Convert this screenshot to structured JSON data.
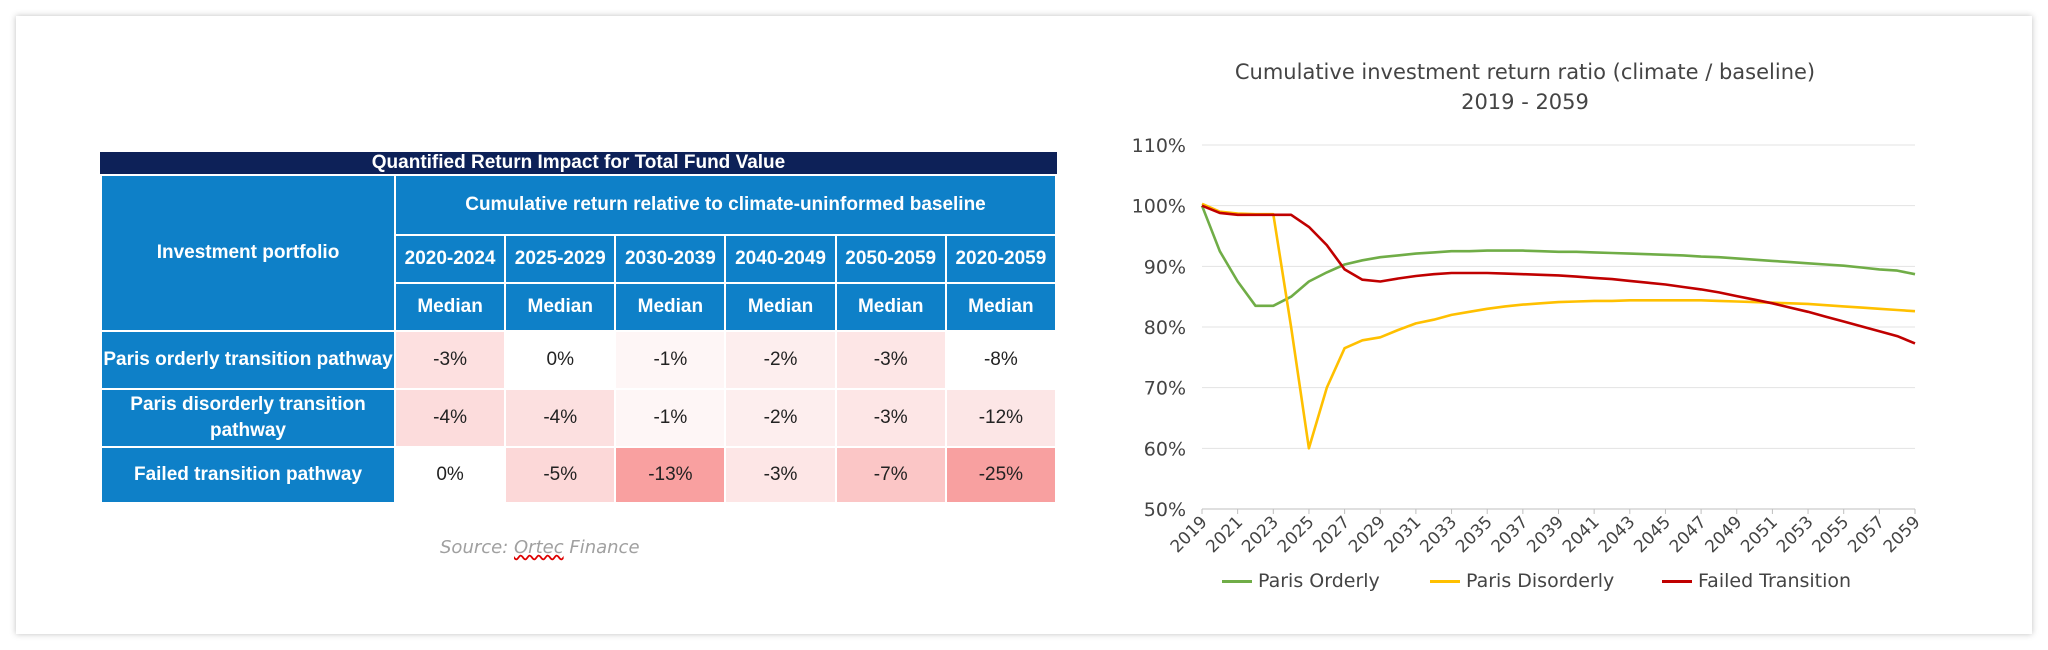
{
  "table": {
    "title": "Quantified Return Impact for Total Fund Value",
    "portfolio_header": "Investment portfolio",
    "group_header": "Cumulative return relative to climate-uninformed baseline",
    "periods": [
      "2020-2024",
      "2025-2029",
      "2030-2039",
      "2040-2049",
      "2050-2059",
      "2020-2059"
    ],
    "stat_labels": [
      "Median",
      "Median",
      "Median",
      "Median",
      "Median",
      "Median"
    ],
    "rows": [
      {
        "label": "Paris orderly transition pathway",
        "values": [
          "-3%",
          "0%",
          "-1%",
          "-2%",
          "-3%",
          "-8%"
        ],
        "colors": [
          "#fde0e0",
          "#ffffff",
          "#fef6f6",
          "#fdeeee",
          "#fde6e6",
          "#ffffff"
        ]
      },
      {
        "label": "Paris disorderly transition pathway",
        "values": [
          "-4%",
          "-4%",
          "-1%",
          "-2%",
          "-3%",
          "-12%"
        ],
        "colors": [
          "#fcdcdc",
          "#fce0e0",
          "#fef6f6",
          "#fdeeee",
          "#fde6e6",
          "#fce6e6"
        ]
      },
      {
        "label": "Failed transition pathway",
        "values": [
          "0%",
          "-5%",
          "-13%",
          "-3%",
          "-7%",
          "-25%"
        ],
        "colors": [
          "#ffffff",
          "#fcd8d8",
          "#f9a0a0",
          "#fde6e6",
          "#fbc6c6",
          "#f8a0a0"
        ]
      }
    ],
    "source_prefix": "Source: ",
    "source_name": "Ortec",
    "source_suffix": " Finance"
  },
  "chart_data": {
    "type": "line",
    "title": "Cumulative investment return ratio (climate / baseline)",
    "subtitle": "2019 - 2059",
    "xlabel": "",
    "ylabel": "",
    "ylim": [
      50,
      110
    ],
    "yticks": [
      "50%",
      "60%",
      "70%",
      "80%",
      "90%",
      "100%",
      "110%"
    ],
    "xtick_labels": [
      "2019",
      "2021",
      "2023",
      "2025",
      "2027",
      "2029",
      "2031",
      "2033",
      "2035",
      "2037",
      "2039",
      "2041",
      "2043",
      "2045",
      "2047",
      "2049",
      "2051",
      "2053",
      "2055",
      "2057",
      "2059"
    ],
    "x": [
      2019,
      2020,
      2021,
      2022,
      2023,
      2024,
      2025,
      2026,
      2027,
      2028,
      2029,
      2030,
      2031,
      2032,
      2033,
      2034,
      2035,
      2036,
      2037,
      2038,
      2039,
      2040,
      2041,
      2042,
      2043,
      2044,
      2045,
      2046,
      2047,
      2048,
      2049,
      2050,
      2051,
      2052,
      2053,
      2054,
      2055,
      2056,
      2057,
      2058,
      2059
    ],
    "grid": true,
    "legend_position": "bottom",
    "series": [
      {
        "name": "Paris Orderly",
        "color": "#70ad47",
        "values": [
          100,
          92.5,
          87.5,
          83.5,
          83.5,
          85,
          87.5,
          89,
          90.3,
          91,
          91.5,
          91.8,
          92.1,
          92.3,
          92.5,
          92.5,
          92.6,
          92.6,
          92.6,
          92.5,
          92.4,
          92.4,
          92.3,
          92.2,
          92.1,
          92,
          91.9,
          91.8,
          91.6,
          91.5,
          91.3,
          91.1,
          90.9,
          90.7,
          90.5,
          90.3,
          90.1,
          89.8,
          89.5,
          89.3,
          88.7
        ]
      },
      {
        "name": "Paris Disorderly",
        "color": "#ffc000",
        "values": [
          100.3,
          99,
          98.7,
          98.6,
          98.6,
          80,
          60,
          70,
          76.5,
          77.8,
          78.3,
          79.5,
          80.6,
          81.2,
          82,
          82.5,
          83,
          83.4,
          83.7,
          83.9,
          84.1,
          84.2,
          84.3,
          84.3,
          84.4,
          84.4,
          84.4,
          84.4,
          84.4,
          84.3,
          84.2,
          84.1,
          84,
          83.9,
          83.8,
          83.6,
          83.4,
          83.2,
          83,
          82.8,
          82.6
        ]
      },
      {
        "name": "Failed Transition",
        "color": "#c00000",
        "values": [
          100,
          98.8,
          98.5,
          98.5,
          98.5,
          98.5,
          96.5,
          93.5,
          89.5,
          87.8,
          87.5,
          88,
          88.4,
          88.7,
          88.9,
          88.9,
          88.9,
          88.8,
          88.7,
          88.6,
          88.5,
          88.3,
          88.1,
          87.9,
          87.6,
          87.3,
          87,
          86.6,
          86.2,
          85.7,
          85.1,
          84.5,
          83.9,
          83.2,
          82.5,
          81.7,
          80.9,
          80.1,
          79.3,
          78.5,
          77.3
        ]
      }
    ]
  }
}
